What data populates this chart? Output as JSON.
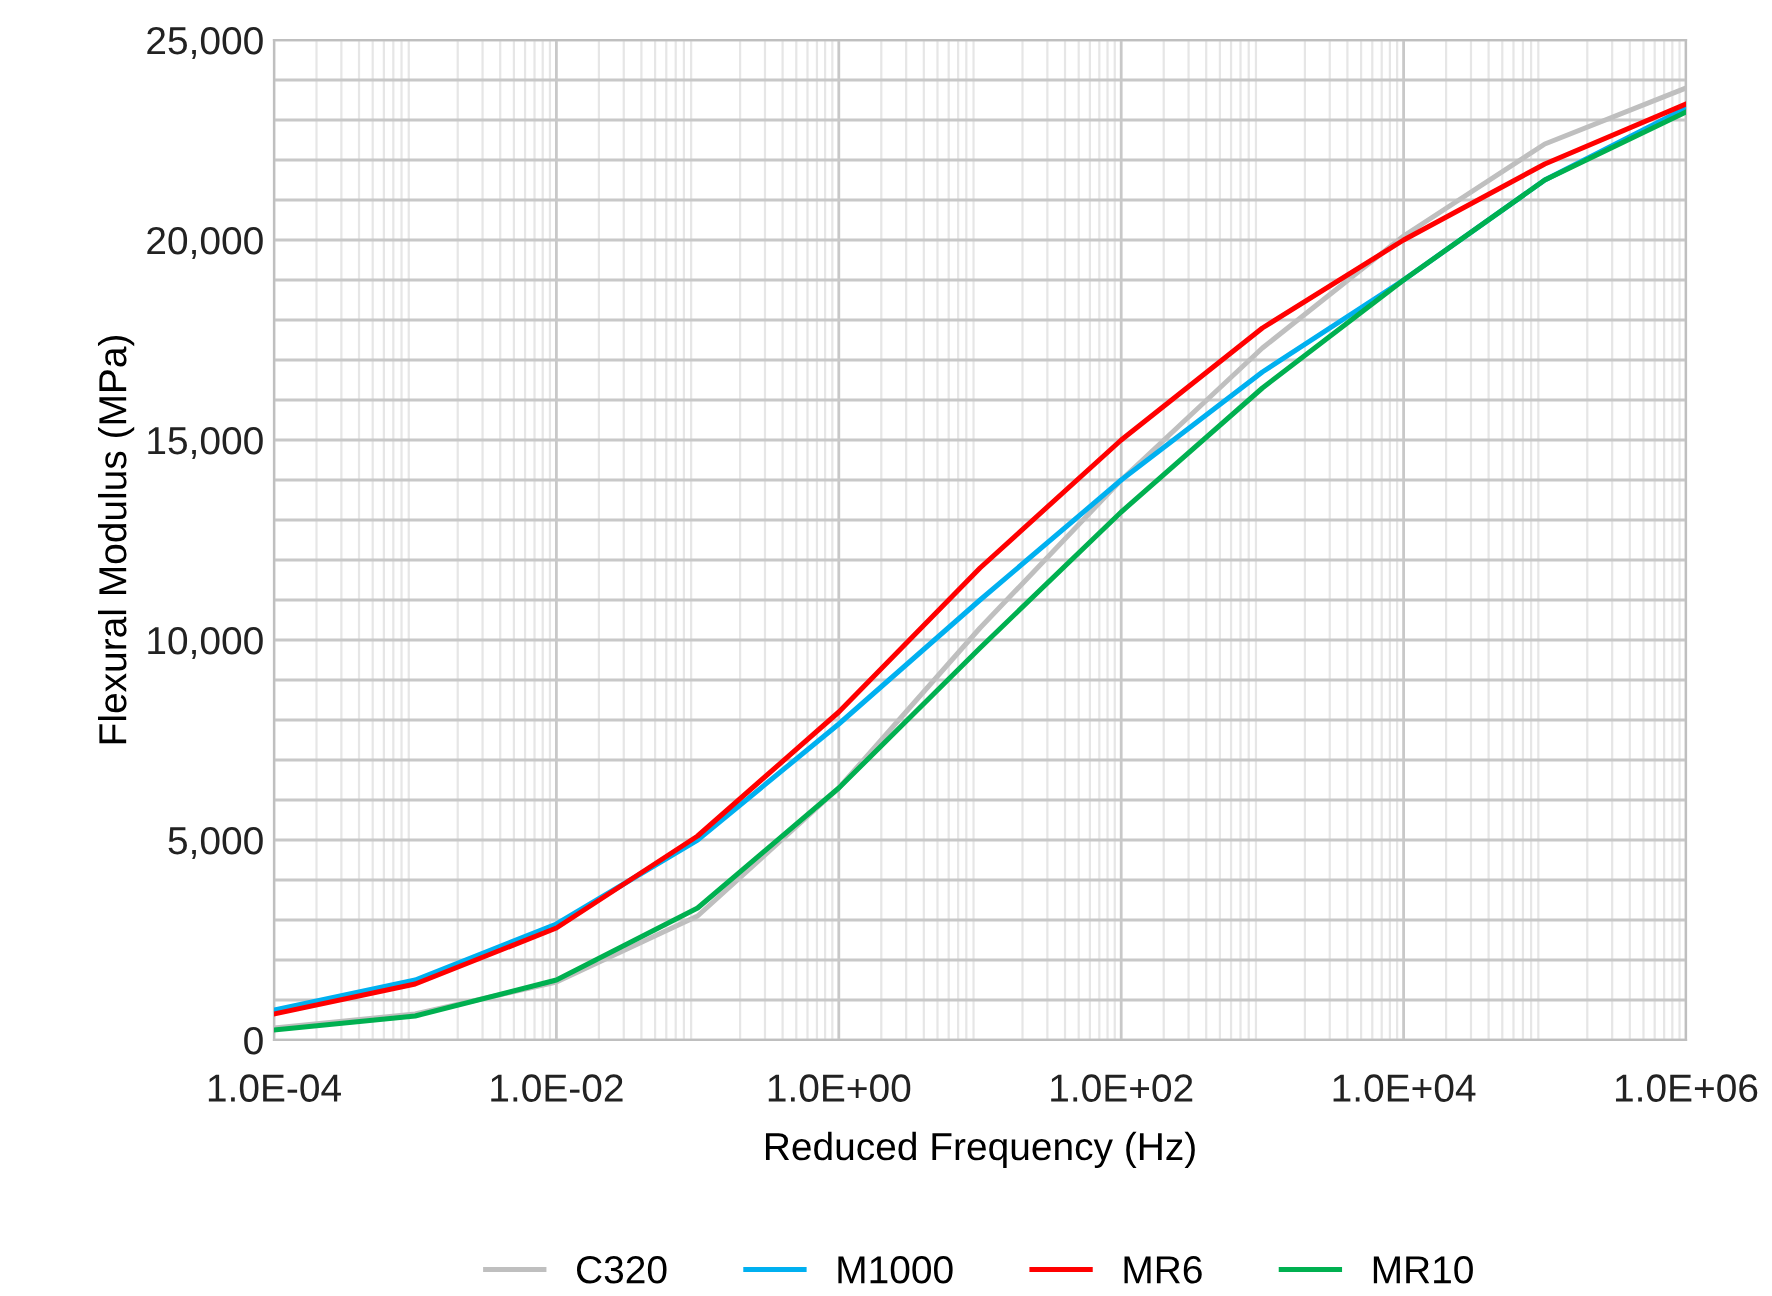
{
  "chart_data": {
    "type": "line",
    "xlabel": "Reduced Frequency (Hz)",
    "ylabel": "Flexural Modulus (MPa)",
    "log": "x",
    "grid": true,
    "legend": "bottom",
    "marker": "none",
    "line_style": "solid",
    "xlim": [
      0.0001,
      1000000
    ],
    "ylim": [
      0,
      25000
    ],
    "xticks": [
      {
        "value": 0.0001,
        "label": "1.0E-04"
      },
      {
        "value": 0.01,
        "label": "1.0E-02"
      },
      {
        "value": 1,
        "label": "1.0E+00"
      },
      {
        "value": 100,
        "label": "1.0E+02"
      },
      {
        "value": 10000,
        "label": "1.0E+04"
      },
      {
        "value": 1000000,
        "label": "1.0E+06"
      }
    ],
    "yticks": [
      {
        "value": 0,
        "label": "0"
      },
      {
        "value": 1000,
        "label": null
      },
      {
        "value": 2000,
        "label": null
      },
      {
        "value": 3000,
        "label": null
      },
      {
        "value": 4000,
        "label": null
      },
      {
        "value": 5000,
        "label": "5,000"
      },
      {
        "value": 6000,
        "label": null
      },
      {
        "value": 7000,
        "label": null
      },
      {
        "value": 8000,
        "label": null
      },
      {
        "value": 9000,
        "label": null
      },
      {
        "value": 10000,
        "label": "10,000"
      },
      {
        "value": 11000,
        "label": null
      },
      {
        "value": 12000,
        "label": null
      },
      {
        "value": 13000,
        "label": null
      },
      {
        "value": 14000,
        "label": null
      },
      {
        "value": 15000,
        "label": "15,000"
      },
      {
        "value": 16000,
        "label": null
      },
      {
        "value": 17000,
        "label": null
      },
      {
        "value": 18000,
        "label": null
      },
      {
        "value": 19000,
        "label": null
      },
      {
        "value": 20000,
        "label": "20,000"
      },
      {
        "value": 21000,
        "label": null
      },
      {
        "value": 22000,
        "label": null
      },
      {
        "value": 23000,
        "label": null
      },
      {
        "value": 24000,
        "label": null
      },
      {
        "value": 25000,
        "label": "25,000"
      }
    ],
    "x": [
      0.0001,
      0.001,
      0.01,
      0.1,
      1,
      10,
      100,
      1000,
      10000,
      100000,
      1000000
    ],
    "series": [
      {
        "name": "C320",
        "color": "#bfbfbf",
        "values": [
          300,
          650,
          1450,
          3100,
          6300,
          10300,
          14000,
          17300,
          20100,
          22400,
          23800
        ]
      },
      {
        "name": "M1000",
        "color": "#00b0f0",
        "values": [
          750,
          1500,
          2900,
          5000,
          7900,
          11000,
          14000,
          16700,
          19000,
          21500,
          23300
        ]
      },
      {
        "name": "MR6",
        "color": "#ff0000",
        "values": [
          650,
          1400,
          2800,
          5100,
          8200,
          11800,
          15000,
          17800,
          20000,
          21900,
          23400
        ]
      },
      {
        "name": "MR10",
        "color": "#00b050",
        "values": [
          250,
          600,
          1500,
          3300,
          6300,
          9800,
          13200,
          16300,
          19000,
          21500,
          23200
        ]
      }
    ]
  }
}
